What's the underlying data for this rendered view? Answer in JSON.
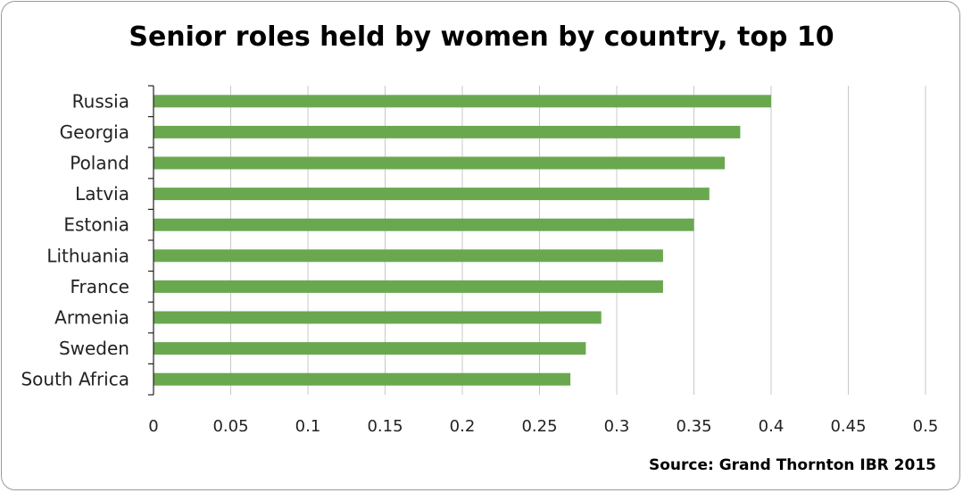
{
  "chart_data": {
    "type": "bar",
    "orientation": "horizontal",
    "title": "Senior roles held by women by country, top 10",
    "source": "Source: Grand Thornton IBR 2015",
    "categories": [
      "Russia",
      "Georgia",
      "Poland",
      "Latvia",
      "Estonia",
      "Lithuania",
      "France",
      "Armenia",
      "Sweden",
      "South Africa"
    ],
    "values": [
      0.4,
      0.38,
      0.37,
      0.36,
      0.35,
      0.33,
      0.33,
      0.29,
      0.28,
      0.27
    ],
    "xlim": [
      0,
      0.5
    ],
    "xticks": [
      "0",
      "0.05",
      "0.1",
      "0.15",
      "0.2",
      "0.25",
      "0.3",
      "0.35",
      "0.4",
      "0.45",
      "0.5"
    ],
    "grid": true,
    "legend": "none",
    "bar_color": "#6aa84f",
    "grid_color": "#c8c8c8"
  }
}
